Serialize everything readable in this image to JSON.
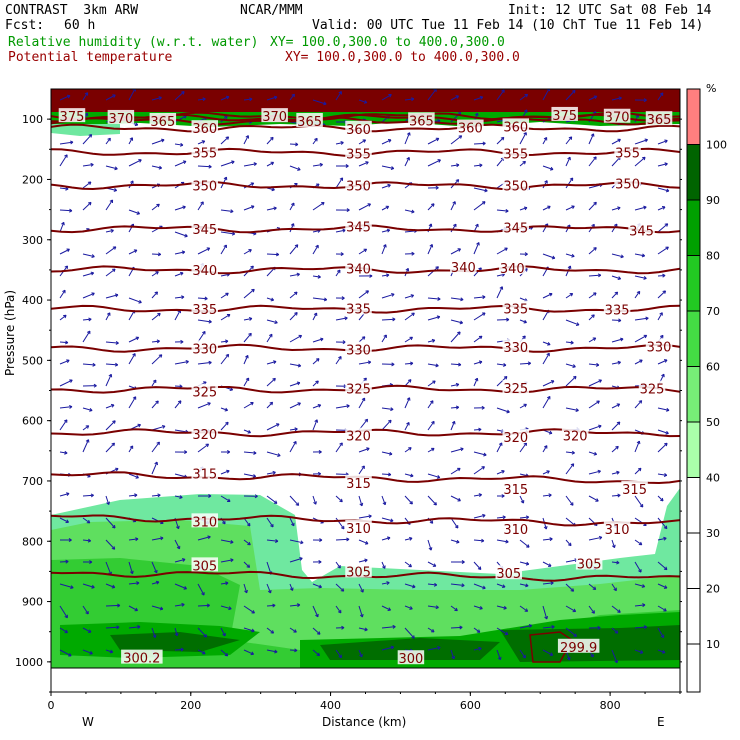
{
  "header": {
    "model": "CONTRAST  3km ARW",
    "center": "NCAR/MMM",
    "init": "Init: 12 UTC Sat 08 Feb 14",
    "fcst_label": "Fcst:",
    "fcst_value": "60 h",
    "valid": "Valid: 00 UTC Tue 11 Feb 14 (10 ChT Tue 11 Feb 14)",
    "rh_label": "Relative humidity (w.r.t. water)",
    "rh_xy": "XY= 100.0,300.0 to 400.0,300.0",
    "theta_label": "Potential temperature",
    "theta_xy": "XY= 100.0,300.0 to 400.0,300.0"
  },
  "chart_data": {
    "type": "cross-section",
    "xlabel": "Distance (km)",
    "ylabel": "Pressure (hPa)",
    "x_ticks": [
      "0",
      "200",
      "400",
      "600",
      "800"
    ],
    "x_tick_values": [
      0,
      200,
      400,
      600,
      800
    ],
    "xlim": [
      0,
      900
    ],
    "ylim": [
      1050,
      50
    ],
    "y_ticks": [
      "100",
      "200",
      "300",
      "400",
      "500",
      "600",
      "700",
      "800",
      "900",
      "1000"
    ],
    "y_tick_values": [
      100,
      200,
      300,
      400,
      500,
      600,
      700,
      800,
      900,
      1000
    ],
    "west_label": "W",
    "east_label": "E",
    "colorbar": {
      "unit": "%",
      "labels": [
        "100",
        "90",
        "80",
        "70",
        "60",
        "50",
        "40",
        "30",
        "20",
        "10"
      ],
      "label_values": [
        100,
        90,
        80,
        70,
        60,
        50,
        40,
        30,
        20,
        10
      ],
      "colors": [
        "#ff7f7f",
        "#006400",
        "#00a000",
        "#22c922",
        "#44dd44",
        "#77ee77",
        "#aaffaa"
      ]
    },
    "rh_fill_colors": {
      "50-60": "#6fe8a0",
      "60-70": "#5fdf5f",
      "70-80": "#33cc33",
      "80-90": "#00aa00",
      "90-100": "#006e00",
      "100+": "#7a0000"
    },
    "isentropes": [
      {
        "theta": 375,
        "pressure": 95
      },
      {
        "theta": 370,
        "pressure": 98
      },
      {
        "theta": 365,
        "pressure": 103
      },
      {
        "theta": 360,
        "pressure": 115
      },
      {
        "theta": 355,
        "pressure": 155
      },
      {
        "theta": 350,
        "pressure": 210
      },
      {
        "theta": 345,
        "pressure": 282
      },
      {
        "theta": 340,
        "pressure": 350
      },
      {
        "theta": 335,
        "pressure": 415
      },
      {
        "theta": 330,
        "pressure": 480
      },
      {
        "theta": 325,
        "pressure": 548
      },
      {
        "theta": 320,
        "pressure": 620
      },
      {
        "theta": 315,
        "pressure": 690
      },
      {
        "theta": 310,
        "pressure": 760
      },
      {
        "theta": 305,
        "pressure": 852
      }
    ],
    "isentrope_labels": [
      {
        "text": "375",
        "x": 30,
        "p": 95
      },
      {
        "text": "370",
        "x": 100,
        "p": 98
      },
      {
        "text": "365",
        "x": 160,
        "p": 103
      },
      {
        "text": "360",
        "x": 220,
        "p": 115
      },
      {
        "text": "370",
        "x": 320,
        "p": 95
      },
      {
        "text": "365",
        "x": 370,
        "p": 103
      },
      {
        "text": "360",
        "x": 440,
        "p": 116
      },
      {
        "text": "365",
        "x": 530,
        "p": 102
      },
      {
        "text": "360",
        "x": 600,
        "p": 114
      },
      {
        "text": "360",
        "x": 665,
        "p": 112
      },
      {
        "text": "375",
        "x": 735,
        "p": 93
      },
      {
        "text": "370",
        "x": 810,
        "p": 96
      },
      {
        "text": "365",
        "x": 870,
        "p": 100
      },
      {
        "text": "355",
        "x": 220,
        "p": 155
      },
      {
        "text": "355",
        "x": 440,
        "p": 157
      },
      {
        "text": "355",
        "x": 665,
        "p": 157
      },
      {
        "text": "355",
        "x": 825,
        "p": 155
      },
      {
        "text": "350",
        "x": 220,
        "p": 210
      },
      {
        "text": "350",
        "x": 440,
        "p": 210
      },
      {
        "text": "350",
        "x": 665,
        "p": 210
      },
      {
        "text": "350",
        "x": 825,
        "p": 207
      },
      {
        "text": "345",
        "x": 220,
        "p": 282
      },
      {
        "text": "345",
        "x": 440,
        "p": 278
      },
      {
        "text": "345",
        "x": 665,
        "p": 280
      },
      {
        "text": "345",
        "x": 845,
        "p": 285
      },
      {
        "text": "340",
        "x": 220,
        "p": 350
      },
      {
        "text": "340",
        "x": 440,
        "p": 348
      },
      {
        "text": "340",
        "x": 590,
        "p": 345
      },
      {
        "text": "340",
        "x": 660,
        "p": 347
      },
      {
        "text": "335",
        "x": 220,
        "p": 415
      },
      {
        "text": "335",
        "x": 440,
        "p": 414
      },
      {
        "text": "335",
        "x": 665,
        "p": 414
      },
      {
        "text": "335",
        "x": 810,
        "p": 416
      },
      {
        "text": "330",
        "x": 220,
        "p": 480
      },
      {
        "text": "330",
        "x": 440,
        "p": 482
      },
      {
        "text": "330",
        "x": 665,
        "p": 478
      },
      {
        "text": "330",
        "x": 870,
        "p": 477
      },
      {
        "text": "325",
        "x": 220,
        "p": 552
      },
      {
        "text": "325",
        "x": 440,
        "p": 547
      },
      {
        "text": "325",
        "x": 665,
        "p": 546
      },
      {
        "text": "325",
        "x": 860,
        "p": 547
      },
      {
        "text": "320",
        "x": 220,
        "p": 622
      },
      {
        "text": "320",
        "x": 440,
        "p": 625
      },
      {
        "text": "320",
        "x": 665,
        "p": 627
      },
      {
        "text": "320",
        "x": 750,
        "p": 625
      },
      {
        "text": "315",
        "x": 220,
        "p": 688
      },
      {
        "text": "315",
        "x": 440,
        "p": 703
      },
      {
        "text": "315",
        "x": 665,
        "p": 713
      },
      {
        "text": "315",
        "x": 835,
        "p": 713
      },
      {
        "text": "310",
        "x": 220,
        "p": 767
      },
      {
        "text": "310",
        "x": 440,
        "p": 778
      },
      {
        "text": "310",
        "x": 665,
        "p": 780
      },
      {
        "text": "310",
        "x": 810,
        "p": 780
      },
      {
        "text": "305",
        "x": 220,
        "p": 840
      },
      {
        "text": "305",
        "x": 440,
        "p": 850
      },
      {
        "text": "305",
        "x": 655,
        "p": 853
      },
      {
        "text": "305",
        "x": 770,
        "p": 837
      },
      {
        "text": "300.2",
        "x": 130,
        "p": 993
      },
      {
        "text": "300",
        "x": 515,
        "p": 994
      },
      {
        "text": "299.9",
        "x": 755,
        "p": 975
      }
    ]
  }
}
